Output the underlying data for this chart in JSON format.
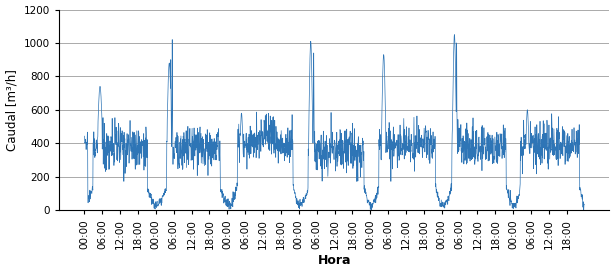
{
  "title": "",
  "xlabel": "Hora",
  "ylabel": "Caudal [m³/h]",
  "ylim": [
    0,
    1200
  ],
  "yticks": [
    0,
    200,
    400,
    600,
    800,
    1000,
    1200
  ],
  "line_color": "#2E75B6",
  "line_width": 0.5,
  "bg_color": "#FFFFFF",
  "grid_color": "#AAAAAA",
  "n_days": 7,
  "points_per_day": 288,
  "figsize": [
    6.15,
    2.73
  ],
  "dpi": 100
}
